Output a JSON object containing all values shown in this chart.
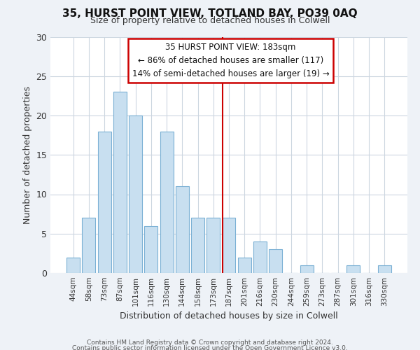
{
  "title": "35, HURST POINT VIEW, TOTLAND BAY, PO39 0AQ",
  "subtitle": "Size of property relative to detached houses in Colwell",
  "xlabel": "Distribution of detached houses by size in Colwell",
  "ylabel": "Number of detached properties",
  "bar_labels": [
    "44sqm",
    "58sqm",
    "73sqm",
    "87sqm",
    "101sqm",
    "116sqm",
    "130sqm",
    "144sqm",
    "158sqm",
    "173sqm",
    "187sqm",
    "201sqm",
    "216sqm",
    "230sqm",
    "244sqm",
    "259sqm",
    "273sqm",
    "287sqm",
    "301sqm",
    "316sqm",
    "330sqm"
  ],
  "bar_values": [
    2,
    7,
    18,
    23,
    20,
    6,
    18,
    11,
    7,
    7,
    7,
    2,
    4,
    3,
    0,
    1,
    0,
    0,
    1,
    0,
    1
  ],
  "bar_color": "#c8dff0",
  "bar_edge_color": "#7ab0d4",
  "vline_index": 10,
  "vline_color": "#cc0000",
  "annotation_title": "35 HURST POINT VIEW: 183sqm",
  "annotation_line1": "← 86% of detached houses are smaller (117)",
  "annotation_line2": "14% of semi-detached houses are larger (19) →",
  "annotation_box_edge": "#cc0000",
  "annotation_box_face": "#ffffff",
  "ylim": [
    0,
    30
  ],
  "yticks": [
    0,
    5,
    10,
    15,
    20,
    25,
    30
  ],
  "footnote1": "Contains HM Land Registry data © Crown copyright and database right 2024.",
  "footnote2": "Contains public sector information licensed under the Open Government Licence v3.0.",
  "bg_color": "#eef2f7",
  "plot_bg_color": "#ffffff",
  "grid_color": "#ccd6e0"
}
